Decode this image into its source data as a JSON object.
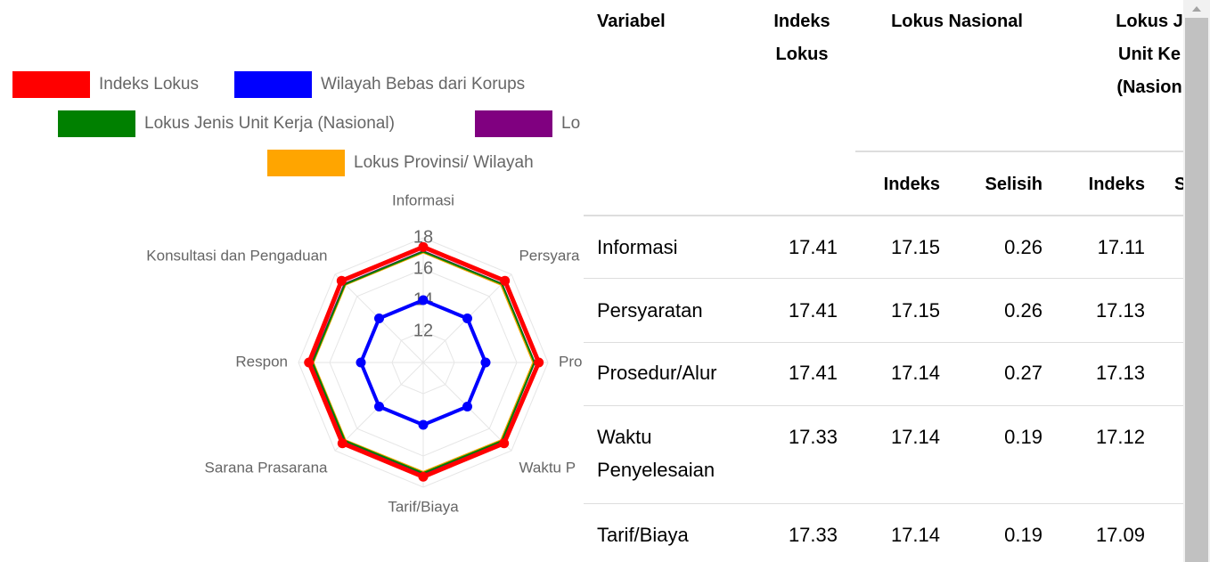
{
  "chart_data": {
    "type": "radar",
    "categories": [
      "Informasi",
      "Persyara",
      "Pro",
      "Waktu P",
      "Tarif/Biaya",
      "Sarana Prasarana",
      "Respon",
      "Konsultasi dan Pengaduan"
    ],
    "series": [
      {
        "name": "Lokus Provinsi/ Wilayah",
        "color": "#ffa500",
        "markers": false,
        "values": [
          17.05,
          17.05,
          17.05,
          17.05,
          17.02,
          17.05,
          17.05,
          17.05
        ]
      },
      {
        "name": "Lo",
        "color": "#800080",
        "markers": false,
        "values": [
          17.15,
          17.15,
          17.14,
          17.14,
          17.14,
          17.14,
          17.14,
          17.14
        ]
      },
      {
        "name": "Lokus Jenis Unit Kerja (Nasional)",
        "color": "#008000",
        "markers": false,
        "values": [
          17.11,
          17.13,
          17.13,
          17.12,
          17.09,
          17.1,
          17.1,
          17.1
        ]
      },
      {
        "name": "Wilayah Bebas dari Korups",
        "color": "#0000ff",
        "markers": true,
        "values": [
          14,
          14,
          14,
          14,
          14,
          14,
          14,
          14
        ]
      },
      {
        "name": "Indeks Lokus",
        "color": "#ff0000",
        "markers": true,
        "values": [
          17.41,
          17.41,
          17.41,
          17.33,
          17.33,
          17.33,
          17.33,
          17.41
        ]
      }
    ],
    "ylim": [
      10,
      18
    ],
    "yticks": [
      12,
      14,
      16,
      18
    ],
    "grid": true
  },
  "table": {
    "columns": [
      "Variabel",
      "Indeks Lokus",
      "Lokus Nasional",
      [
        "Lokus J",
        "Unit Ke",
        "(Nasion"
      ]
    ],
    "subcolumns": [
      "Indeks",
      "Selisih",
      "Indeks",
      "S"
    ],
    "rows": [
      [
        "Informasi",
        17.41,
        17.15,
        0.26,
        17.11
      ],
      [
        "Persyaratan",
        17.41,
        17.15,
        0.26,
        17.13
      ],
      [
        "Prosedur/Alur",
        17.41,
        17.14,
        0.27,
        17.13
      ],
      [
        "Waktu Penyelesaian",
        17.33,
        17.14,
        0.19,
        17.12
      ],
      [
        "Tarif/Biaya",
        17.33,
        17.14,
        0.19,
        17.09
      ]
    ]
  }
}
